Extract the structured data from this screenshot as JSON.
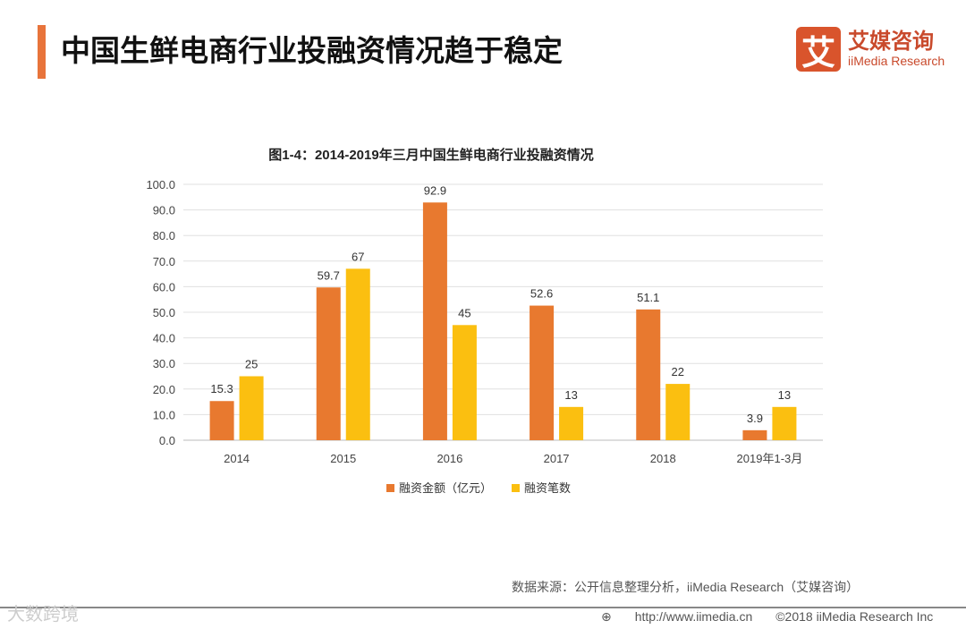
{
  "header": {
    "title": "中国生鲜电商行业投融资情况趋于稳定"
  },
  "logo": {
    "mark": "艾",
    "cn": "艾媒咨询",
    "en": "iiMedia Research"
  },
  "chart_data": {
    "type": "bar",
    "title": "图1-4：2014-2019年三月中国生鲜电商行业投融资情况",
    "categories": [
      "2014",
      "2015",
      "2016",
      "2017",
      "2018",
      "2019年1-3月"
    ],
    "series": [
      {
        "name": "融资金额（亿元）",
        "color": "#e8792f",
        "values": [
          15.3,
          59.7,
          92.9,
          52.6,
          51.1,
          3.9
        ],
        "labels": [
          "15.3",
          "59.7",
          "92.9",
          "52.6",
          "51.1",
          "3.9"
        ]
      },
      {
        "name": "融资笔数",
        "color": "#fbbf10",
        "values": [
          25,
          67,
          45,
          13,
          22,
          13
        ],
        "labels": [
          "25",
          "67",
          "45",
          "13",
          "22",
          "13"
        ]
      }
    ],
    "yticks": [
      "0.0",
      "10.0",
      "20.0",
      "30.0",
      "40.0",
      "50.0",
      "60.0",
      "70.0",
      "80.0",
      "90.0",
      "100.0"
    ],
    "ylim": [
      0,
      100
    ],
    "grid": true,
    "legend": "bottom"
  },
  "source": "数据来源：公开信息整理分析，iiMedia Research（艾媒咨询）",
  "watermark": "大数跨境",
  "footer": {
    "url": "http://www.iimedia.cn",
    "copyright": "©2018  iiMedia Research  Inc"
  }
}
